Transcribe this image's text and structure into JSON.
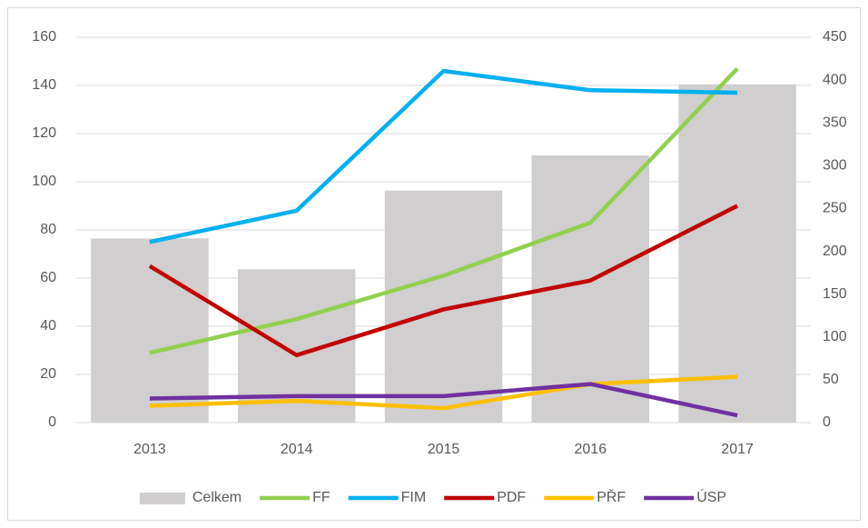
{
  "chart_data": {
    "type": "combo",
    "categories": [
      "2013",
      "2014",
      "2015",
      "2016",
      "2017"
    ],
    "series": [
      {
        "name": "Celkem",
        "type": "bar",
        "axis": "y2",
        "color": "#d0cece",
        "values": [
          215,
          179,
          271,
          312,
          395
        ]
      },
      {
        "name": "FF",
        "type": "line",
        "color": "#92d050",
        "values": [
          29,
          43,
          61,
          83,
          147
        ]
      },
      {
        "name": "FIM",
        "type": "line",
        "color": "#00b0f0",
        "values": [
          75,
          88,
          146,
          138,
          137
        ]
      },
      {
        "name": "PDF",
        "type": "line",
        "color": "#c00000",
        "values": [
          65,
          28,
          47,
          59,
          90
        ]
      },
      {
        "name": "PŘF",
        "type": "line",
        "color": "#ffc000",
        "values": [
          7,
          9,
          6,
          16,
          19
        ]
      },
      {
        "name": "ÚSP",
        "type": "line",
        "color": "#7030a0",
        "values": [
          10,
          11,
          11,
          16,
          3
        ]
      }
    ],
    "ylim": [
      0,
      160
    ],
    "yticks": [
      0,
      20,
      40,
      60,
      80,
      100,
      120,
      140,
      160
    ],
    "y2lim": [
      0,
      450
    ],
    "y2ticks": [
      0,
      50,
      100,
      150,
      200,
      250,
      300,
      350,
      400,
      450
    ],
    "grid": true,
    "legend": "bottom"
  }
}
